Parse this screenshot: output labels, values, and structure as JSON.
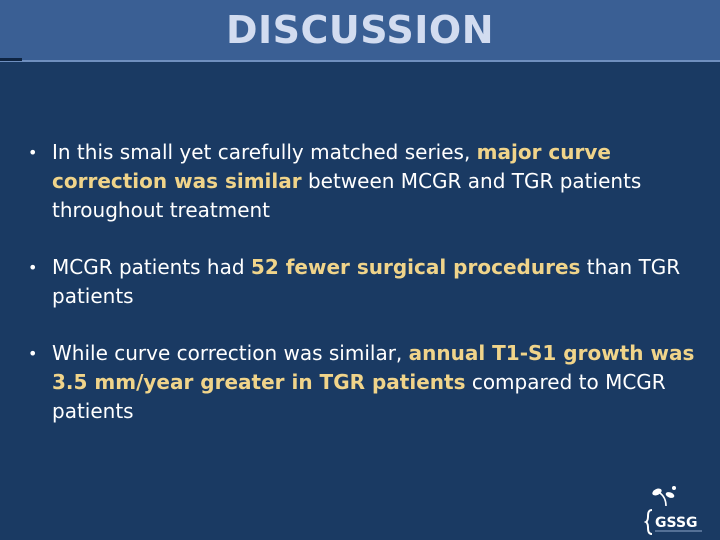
{
  "slide": {
    "title": "DISCUSSION",
    "bullets": [
      {
        "parts": [
          {
            "text": "In this small yet carefully matched series, ",
            "highlight": false
          },
          {
            "text": "major curve correction was similar",
            "highlight": true
          },
          {
            "text": " between MCGR and TGR patients throughout treatment",
            "highlight": false
          }
        ]
      },
      {
        "parts": [
          {
            "text": "MCGR patients had ",
            "highlight": false
          },
          {
            "text": "52 fewer surgical procedures",
            "highlight": true
          },
          {
            "text": " than TGR patients",
            "highlight": false
          }
        ]
      },
      {
        "parts": [
          {
            "text": "While curve correction was similar, ",
            "highlight": false
          },
          {
            "text": "annual T1-S1 growth was 3.5 mm/year greater in TGR patients",
            "highlight": true
          },
          {
            "text": " compared to MCGR patients",
            "highlight": false
          }
        ]
      }
    ],
    "logo": {
      "text": "GSSG",
      "icon": "sprout-icon"
    }
  },
  "colors": {
    "background": "#1a3a63",
    "title_bar": "#3a5f94",
    "title_text": "#d2dcf0",
    "highlight": "#f0d48a",
    "body_text": "#ffffff"
  }
}
